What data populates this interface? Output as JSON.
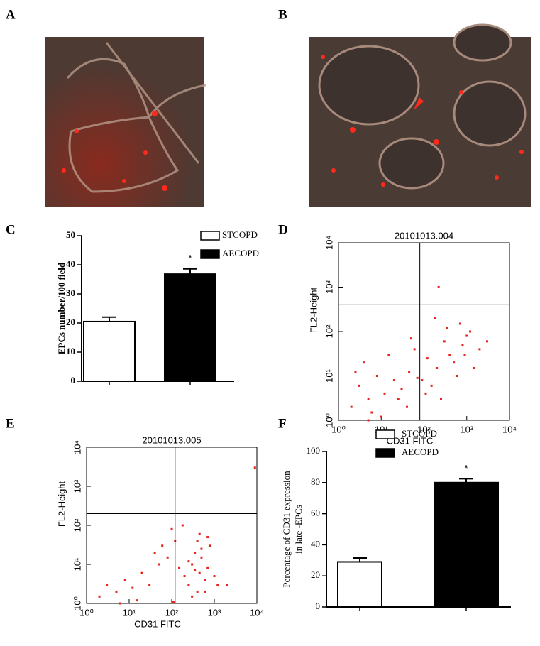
{
  "panel_labels": [
    "A",
    "B",
    "C",
    "D",
    "E",
    "F"
  ],
  "chart_data": [
    {
      "type": "bar",
      "ylabel": [
        "EPCs number/100 field"
      ],
      "ylim": [
        0,
        50
      ],
      "yticks": [
        0,
        10,
        20,
        30,
        40,
        50
      ],
      "annotation": "*",
      "series": [
        {
          "name": "STCOPD",
          "color": "#ffffff",
          "values": [
            20.5
          ],
          "errors": [
            1.5
          ]
        },
        {
          "name": "AECOPD",
          "color": "#000000",
          "values": [
            36.8
          ],
          "errors": [
            1.8
          ]
        }
      ]
    },
    {
      "type": "scatter",
      "title": "20101013.004",
      "xlabel": "CD31 FITC",
      "ylabel": "FL2-Height",
      "log": true,
      "color": "#e8231b",
      "xlim": [
        1,
        10000
      ],
      "ylim": [
        1,
        10000
      ],
      "xticks": [
        {
          "value": 1,
          "label": "10⁰"
        },
        {
          "value": 10,
          "label": "10¹"
        },
        {
          "value": 100,
          "label": "10²"
        },
        {
          "value": 1000,
          "label": "10³"
        },
        {
          "value": 10000,
          "label": "10⁴"
        }
      ],
      "yticks": [
        {
          "value": 1,
          "label": "10⁰"
        },
        {
          "value": 10,
          "label": "10¹"
        },
        {
          "value": 100,
          "label": "10²"
        },
        {
          "value": 1000,
          "label": "10³"
        },
        {
          "value": 10000,
          "label": "10⁴"
        }
      ],
      "quadrant": {
        "x": 80,
        "y": 400
      },
      "x": [
        2,
        3,
        5,
        8,
        4,
        12,
        20,
        6,
        15,
        30,
        45,
        60,
        25,
        90,
        120,
        200,
        300,
        150,
        400,
        600,
        800,
        250,
        500,
        1000,
        1500,
        2000,
        350,
        700,
        40,
        10,
        70,
        110,
        180,
        900,
        1200,
        3000,
        5,
        2.5,
        50,
        220
      ],
      "y": [
        2,
        6,
        3,
        10,
        20,
        4,
        8,
        1.5,
        30,
        5,
        12,
        40,
        3,
        8,
        25,
        15,
        60,
        6,
        30,
        10,
        50,
        3,
        20,
        80,
        15,
        40,
        120,
        150,
        2,
        1.2,
        9,
        4,
        200,
        30,
        100,
        60,
        1,
        12,
        70,
        1000
      ]
    },
    {
      "type": "scatter",
      "title": "20101013.005",
      "xlabel": "CD31 FITC",
      "ylabel": "FL2-Height",
      "log": true,
      "color": "#e8231b",
      "xlim": [
        1,
        10000
      ],
      "ylim": [
        1,
        10000
      ],
      "xticks": [
        {
          "value": 1,
          "label": "10⁰"
        },
        {
          "value": 10,
          "label": "10¹"
        },
        {
          "value": 100,
          "label": "10²"
        },
        {
          "value": 1000,
          "label": "10³"
        },
        {
          "value": 10000,
          "label": "10⁴"
        }
      ],
      "yticks": [
        {
          "value": 1,
          "label": "10⁰"
        },
        {
          "value": 10,
          "label": "10¹"
        },
        {
          "value": 100,
          "label": "10²"
        },
        {
          "value": 1000,
          "label": "10³"
        },
        {
          "value": 10000,
          "label": "10⁴"
        }
      ],
      "quadrant": {
        "x": 120,
        "y": 200
      },
      "x": [
        2,
        3,
        5,
        8,
        12,
        20,
        30,
        50,
        80,
        120,
        150,
        200,
        250,
        300,
        350,
        400,
        450,
        500,
        600,
        700,
        800,
        1000,
        1200,
        300,
        400,
        500,
        250,
        600,
        350,
        450,
        15,
        40,
        100,
        6,
        60,
        180,
        2000,
        9000,
        110,
        700
      ],
      "y": [
        1.5,
        3,
        2,
        4,
        2.5,
        6,
        3,
        10,
        15,
        40,
        8,
        5,
        3,
        10,
        20,
        2,
        6,
        15,
        4,
        8,
        30,
        5,
        3,
        1.5,
        40,
        25,
        12,
        2,
        7,
        60,
        1.2,
        20,
        80,
        1,
        30,
        100,
        3,
        3000,
        1.1,
        50
      ]
    },
    {
      "type": "bar",
      "ylabel": [
        "Percentage of CD31 expression",
        "in late -EPCs"
      ],
      "ylim": [
        0,
        100
      ],
      "yticks": [
        0,
        20,
        40,
        60,
        80,
        100
      ],
      "annotation": "*",
      "series": [
        {
          "name": "STCOPD",
          "color": "#ffffff",
          "values": [
            29
          ],
          "errors": [
            2.5
          ]
        },
        {
          "name": "AECOPD",
          "color": "#000000",
          "values": [
            80
          ],
          "errors": [
            2.5
          ]
        }
      ]
    }
  ]
}
